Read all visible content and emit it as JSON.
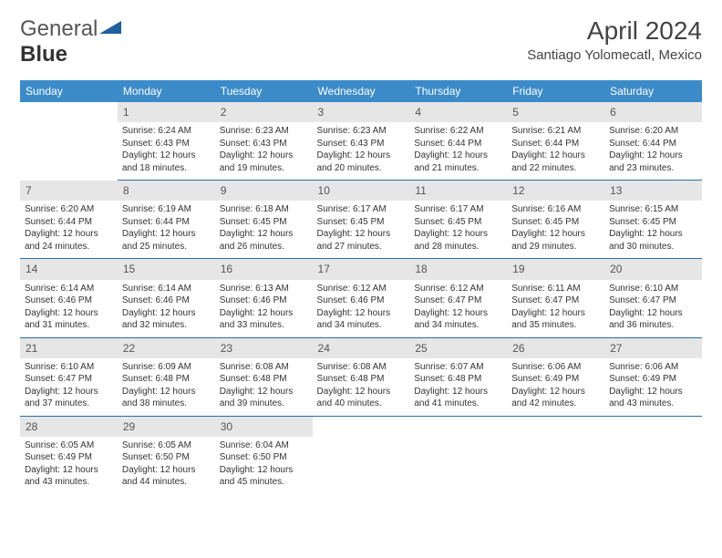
{
  "logo": {
    "word1": "General",
    "word2": "Blue"
  },
  "title": "April 2024",
  "location": "Santiago Yolomecatl, Mexico",
  "colors": {
    "header_bg": "#3b8bc9",
    "daynum_bg": "#e6e6e6",
    "divider": "#2b6ca3",
    "logo_triangle": "#1e5f9e"
  },
  "layout": {
    "title_fontsize": 28,
    "location_fontsize": 15,
    "dayhead_fontsize": 12,
    "cell_fontsize": 10
  },
  "weekdays": [
    "Sunday",
    "Monday",
    "Tuesday",
    "Wednesday",
    "Thursday",
    "Friday",
    "Saturday"
  ],
  "weeks": [
    {
      "nums": [
        "",
        "1",
        "2",
        "3",
        "4",
        "5",
        "6"
      ],
      "cells": [
        "",
        "Sunrise: 6:24 AM\nSunset: 6:43 PM\nDaylight: 12 hours and 18 minutes.",
        "Sunrise: 6:23 AM\nSunset: 6:43 PM\nDaylight: 12 hours and 19 minutes.",
        "Sunrise: 6:23 AM\nSunset: 6:43 PM\nDaylight: 12 hours and 20 minutes.",
        "Sunrise: 6:22 AM\nSunset: 6:44 PM\nDaylight: 12 hours and 21 minutes.",
        "Sunrise: 6:21 AM\nSunset: 6:44 PM\nDaylight: 12 hours and 22 minutes.",
        "Sunrise: 6:20 AM\nSunset: 6:44 PM\nDaylight: 12 hours and 23 minutes."
      ]
    },
    {
      "nums": [
        "7",
        "8",
        "9",
        "10",
        "11",
        "12",
        "13"
      ],
      "cells": [
        "Sunrise: 6:20 AM\nSunset: 6:44 PM\nDaylight: 12 hours and 24 minutes.",
        "Sunrise: 6:19 AM\nSunset: 6:44 PM\nDaylight: 12 hours and 25 minutes.",
        "Sunrise: 6:18 AM\nSunset: 6:45 PM\nDaylight: 12 hours and 26 minutes.",
        "Sunrise: 6:17 AM\nSunset: 6:45 PM\nDaylight: 12 hours and 27 minutes.",
        "Sunrise: 6:17 AM\nSunset: 6:45 PM\nDaylight: 12 hours and 28 minutes.",
        "Sunrise: 6:16 AM\nSunset: 6:45 PM\nDaylight: 12 hours and 29 minutes.",
        "Sunrise: 6:15 AM\nSunset: 6:45 PM\nDaylight: 12 hours and 30 minutes."
      ]
    },
    {
      "nums": [
        "14",
        "15",
        "16",
        "17",
        "18",
        "19",
        "20"
      ],
      "cells": [
        "Sunrise: 6:14 AM\nSunset: 6:46 PM\nDaylight: 12 hours and 31 minutes.",
        "Sunrise: 6:14 AM\nSunset: 6:46 PM\nDaylight: 12 hours and 32 minutes.",
        "Sunrise: 6:13 AM\nSunset: 6:46 PM\nDaylight: 12 hours and 33 minutes.",
        "Sunrise: 6:12 AM\nSunset: 6:46 PM\nDaylight: 12 hours and 34 minutes.",
        "Sunrise: 6:12 AM\nSunset: 6:47 PM\nDaylight: 12 hours and 34 minutes.",
        "Sunrise: 6:11 AM\nSunset: 6:47 PM\nDaylight: 12 hours and 35 minutes.",
        "Sunrise: 6:10 AM\nSunset: 6:47 PM\nDaylight: 12 hours and 36 minutes."
      ]
    },
    {
      "nums": [
        "21",
        "22",
        "23",
        "24",
        "25",
        "26",
        "27"
      ],
      "cells": [
        "Sunrise: 6:10 AM\nSunset: 6:47 PM\nDaylight: 12 hours and 37 minutes.",
        "Sunrise: 6:09 AM\nSunset: 6:48 PM\nDaylight: 12 hours and 38 minutes.",
        "Sunrise: 6:08 AM\nSunset: 6:48 PM\nDaylight: 12 hours and 39 minutes.",
        "Sunrise: 6:08 AM\nSunset: 6:48 PM\nDaylight: 12 hours and 40 minutes.",
        "Sunrise: 6:07 AM\nSunset: 6:48 PM\nDaylight: 12 hours and 41 minutes.",
        "Sunrise: 6:06 AM\nSunset: 6:49 PM\nDaylight: 12 hours and 42 minutes.",
        "Sunrise: 6:06 AM\nSunset: 6:49 PM\nDaylight: 12 hours and 43 minutes."
      ]
    },
    {
      "nums": [
        "28",
        "29",
        "30",
        "",
        "",
        "",
        ""
      ],
      "cells": [
        "Sunrise: 6:05 AM\nSunset: 6:49 PM\nDaylight: 12 hours and 43 minutes.",
        "Sunrise: 6:05 AM\nSunset: 6:50 PM\nDaylight: 12 hours and 44 minutes.",
        "Sunrise: 6:04 AM\nSunset: 6:50 PM\nDaylight: 12 hours and 45 minutes.",
        "",
        "",
        "",
        ""
      ]
    }
  ]
}
